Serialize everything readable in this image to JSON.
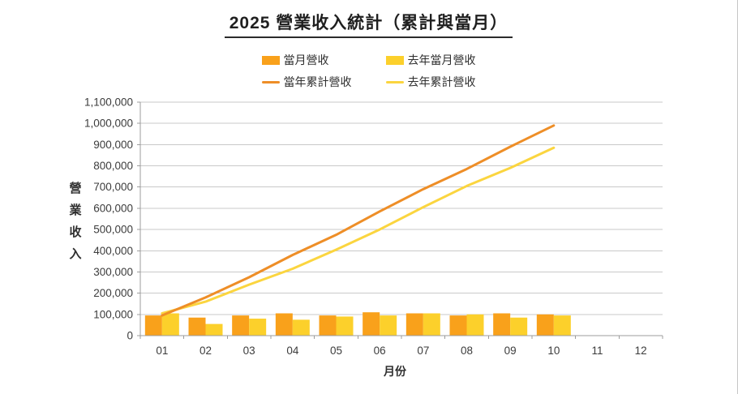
{
  "title": "2025 營業收入統計（累計與當月）",
  "legend": [
    {
      "label": "當月營收",
      "type": "bar",
      "color": "#F9A11B"
    },
    {
      "label": "去年當月營收",
      "type": "bar",
      "color": "#FCD02B"
    },
    {
      "label": "當年累計營收",
      "type": "line",
      "color": "#EE8E27"
    },
    {
      "label": "去年累計營收",
      "type": "line",
      "color": "#FBD53F"
    }
  ],
  "chart_data": {
    "type": "bar+line",
    "title": "2025 營業收入統計（累計與當月）",
    "xlabel": "月份",
    "ylabel": "營業收入",
    "categories": [
      "01",
      "02",
      "03",
      "04",
      "05",
      "06",
      "07",
      "08",
      "09",
      "10",
      "11",
      "12"
    ],
    "series": [
      {
        "name": "當月營收",
        "type": "bar",
        "color": "#F9A11B",
        "values": [
          95000,
          85000,
          95000,
          105000,
          95000,
          110000,
          105000,
          95000,
          105000,
          100000,
          null,
          null
        ]
      },
      {
        "name": "去年當月營收",
        "type": "bar",
        "color": "#FCD02B",
        "values": [
          105000,
          55000,
          80000,
          75000,
          90000,
          95000,
          105000,
          100000,
          85000,
          95000,
          null,
          null
        ]
      },
      {
        "name": "當年累計營收",
        "type": "line",
        "color": "#EE8E27",
        "values": [
          95000,
          180000,
          275000,
          380000,
          475000,
          585000,
          690000,
          785000,
          890000,
          990000,
          null,
          null
        ]
      },
      {
        "name": "去年累計營收",
        "type": "line",
        "color": "#FBD53F",
        "values": [
          105000,
          160000,
          240000,
          315000,
          405000,
          500000,
          605000,
          705000,
          790000,
          885000,
          null,
          null
        ]
      }
    ],
    "ylim": [
      0,
      1100000
    ],
    "ytick_step": 100000,
    "ytick_labels": [
      "0",
      "100,000",
      "200,000",
      "300,000",
      "400,000",
      "500,000",
      "600,000",
      "700,000",
      "800,000",
      "900,000",
      "1,000,000",
      "1,100,000"
    ],
    "grid": true,
    "legend_position": "top",
    "colors": {
      "grid": "#c9c9c9",
      "axis": "#9c9c9c",
      "tick": "#9c9c9c"
    }
  }
}
